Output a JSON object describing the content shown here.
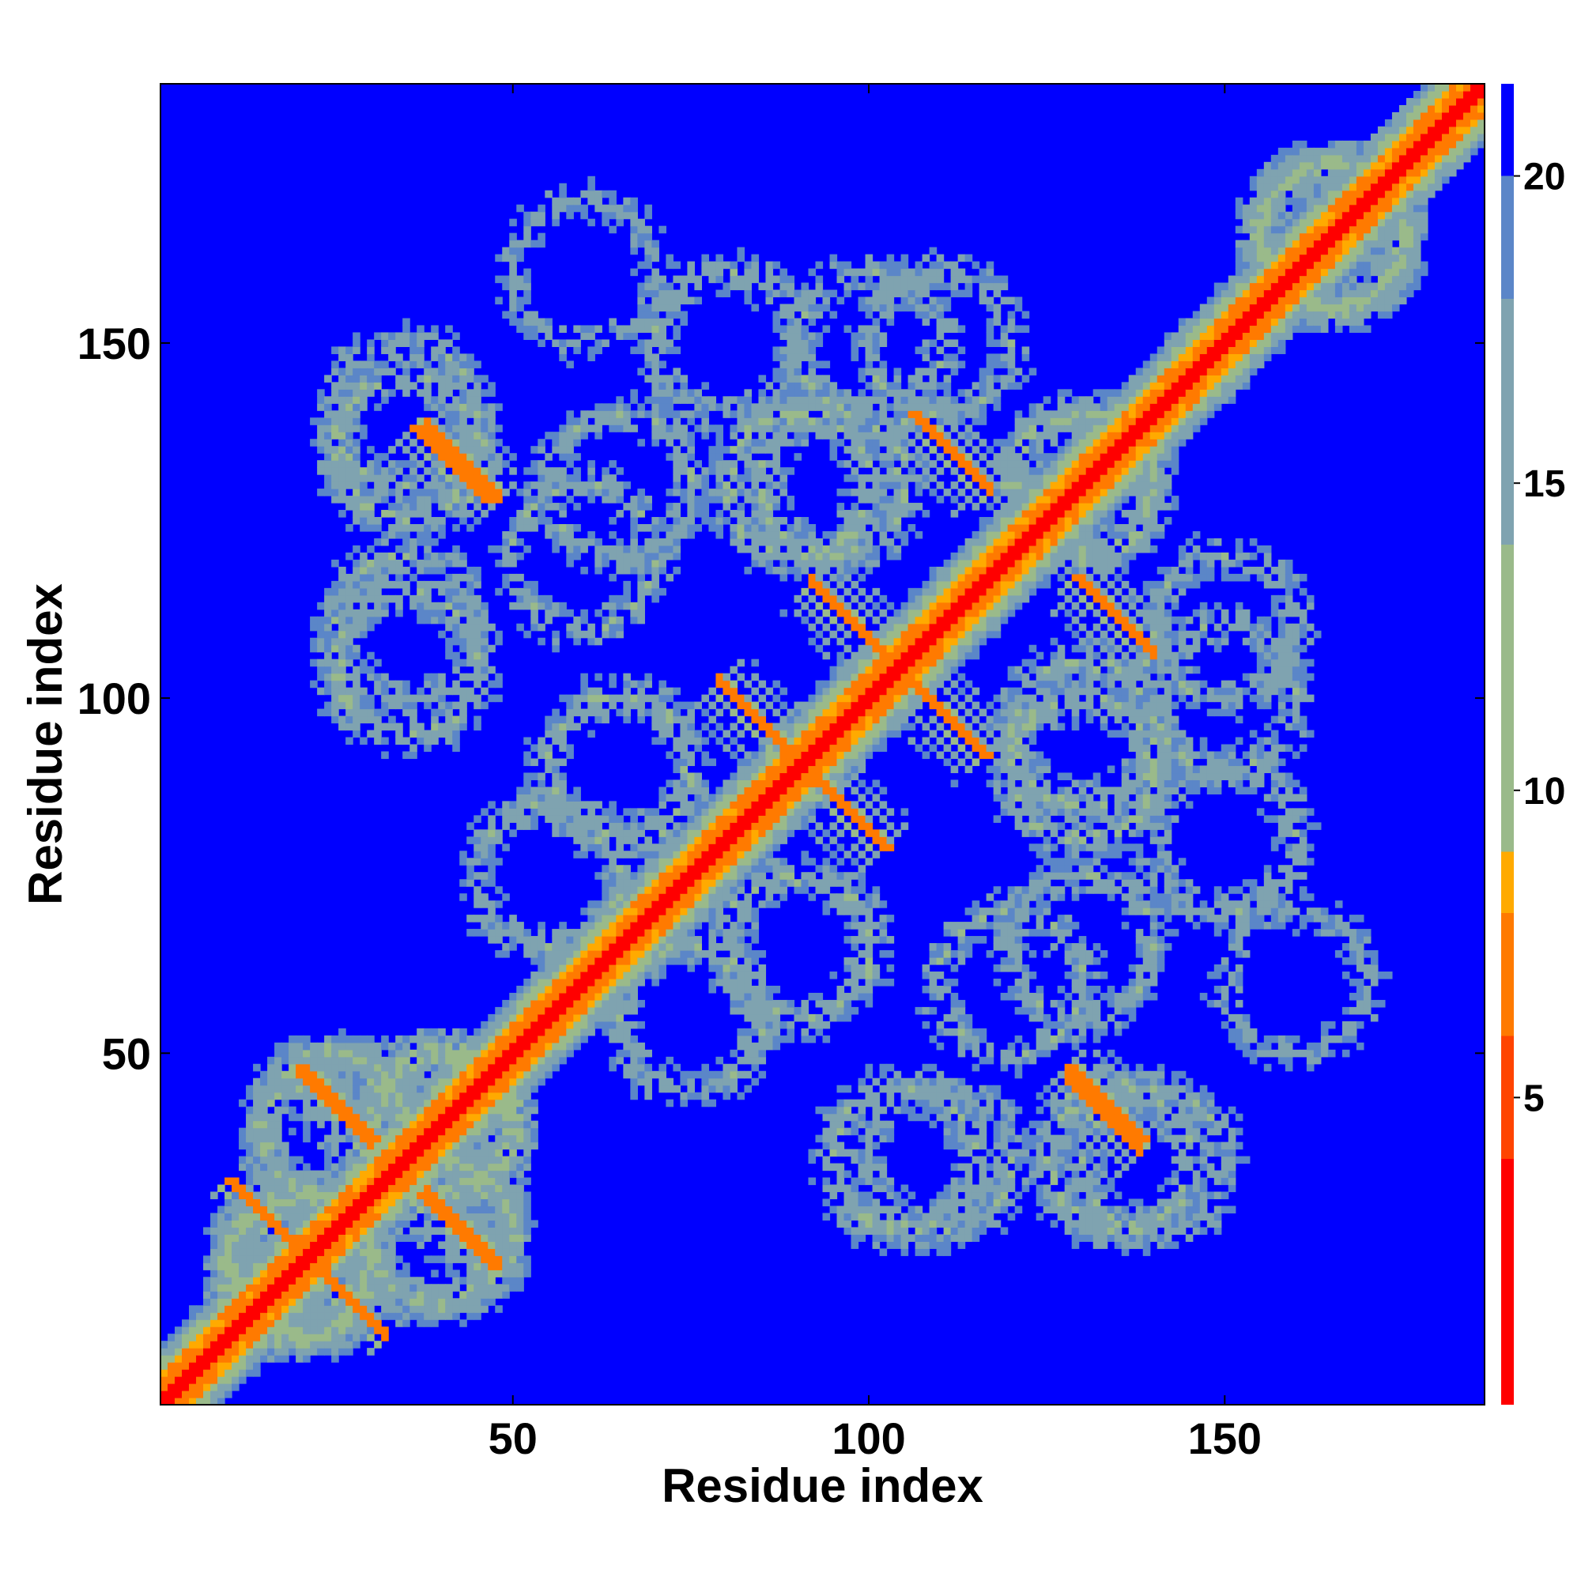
{
  "chart_data": {
    "type": "heatmap",
    "title": "",
    "xlabel": "Residue index",
    "ylabel": "Residue index",
    "xlim": [
      1,
      186
    ],
    "ylim": [
      1,
      186
    ],
    "x_ticks": [
      50,
      100,
      150
    ],
    "y_ticks": [
      50,
      100,
      150
    ],
    "x_tick_labels": [
      "50",
      "100",
      "150"
    ],
    "y_tick_labels": [
      "50",
      "100",
      "150"
    ],
    "colorbar": {
      "range": [
        0,
        21.5
      ],
      "ticks": [
        5,
        10,
        15,
        20
      ],
      "tick_labels": [
        "5",
        "10",
        "15",
        "20"
      ],
      "colors": [
        "#ff0000",
        "#ff4400",
        "#ff7a00",
        "#ffaa00",
        "#9aba8a",
        "#7fa3b0",
        "#5b86c8",
        "#0000ff"
      ],
      "color_stops": [
        0,
        4,
        6,
        8,
        9,
        14,
        18,
        20
      ]
    },
    "grid": false,
    "diagonal": {
      "value": 0
    },
    "helix_band": {
      "half_width_residues": 4,
      "value_on_diagonal": 0
    },
    "contact_segments": [
      {
        "type": "antiparallel",
        "x": [
          10,
          30
        ],
        "y": [
          32,
          12
        ],
        "value": 6
      },
      {
        "type": "antiparallel",
        "x": [
          20,
          30
        ],
        "y": [
          48,
          38
        ],
        "value": 6
      },
      {
        "type": "antiparallel",
        "x": [
          37,
          47
        ],
        "y": [
          30,
          20
        ],
        "value": 6
      },
      {
        "type": "antiparallel",
        "x": [
          36,
          46
        ],
        "y": [
          138,
          128
        ],
        "value": 6
      },
      {
        "type": "antiparallel",
        "x": [
          79,
          92
        ],
        "y": [
          102,
          89
        ],
        "value": 6
      },
      {
        "type": "antiparallel",
        "x": [
          92,
          102
        ],
        "y": [
          89,
          79
        ],
        "value": 6
      },
      {
        "type": "antiparallel",
        "x": [
          92,
          104
        ],
        "y": [
          116,
          104
        ],
        "value": 6
      },
      {
        "type": "antiparallel",
        "x": [
          104,
          116
        ],
        "y": [
          104,
          92
        ],
        "value": 6
      },
      {
        "type": "antiparallel",
        "x": [
          106,
          116
        ],
        "y": [
          140,
          130
        ],
        "value": 6
      },
      {
        "type": "antiparallel",
        "x": [
          129,
          139
        ],
        "y": [
          117,
          107
        ],
        "value": 6
      },
      {
        "type": "antiparallel",
        "x": [
          128,
          138
        ],
        "y": [
          48,
          38
        ],
        "value": 6
      }
    ],
    "clusters": [
      {
        "x": 20,
        "y": 20,
        "value": 11
      },
      {
        "x": 40,
        "y": 40,
        "value": 11
      },
      {
        "x": 25,
        "y": 40,
        "value": 12
      },
      {
        "x": 40,
        "y": 25,
        "value": 12
      },
      {
        "x": 35,
        "y": 135,
        "value": 12
      },
      {
        "x": 35,
        "y": 105,
        "value": 12
      },
      {
        "x": 60,
        "y": 120,
        "value": 13
      },
      {
        "x": 80,
        "y": 150,
        "value": 13
      },
      {
        "x": 95,
        "y": 130,
        "value": 12
      },
      {
        "x": 110,
        "y": 150,
        "value": 13
      },
      {
        "x": 130,
        "y": 130,
        "value": 12
      },
      {
        "x": 130,
        "y": 90,
        "value": 12
      },
      {
        "x": 90,
        "y": 65,
        "value": 12
      },
      {
        "x": 75,
        "y": 55,
        "value": 13
      },
      {
        "x": 130,
        "y": 65,
        "value": 13
      },
      {
        "x": 140,
        "y": 35,
        "value": 13
      },
      {
        "x": 110,
        "y": 35,
        "value": 13
      },
      {
        "x": 160,
        "y": 60,
        "value": 14
      },
      {
        "x": 150,
        "y": 100,
        "value": 13
      },
      {
        "x": 165,
        "y": 165,
        "value": 11
      }
    ]
  }
}
